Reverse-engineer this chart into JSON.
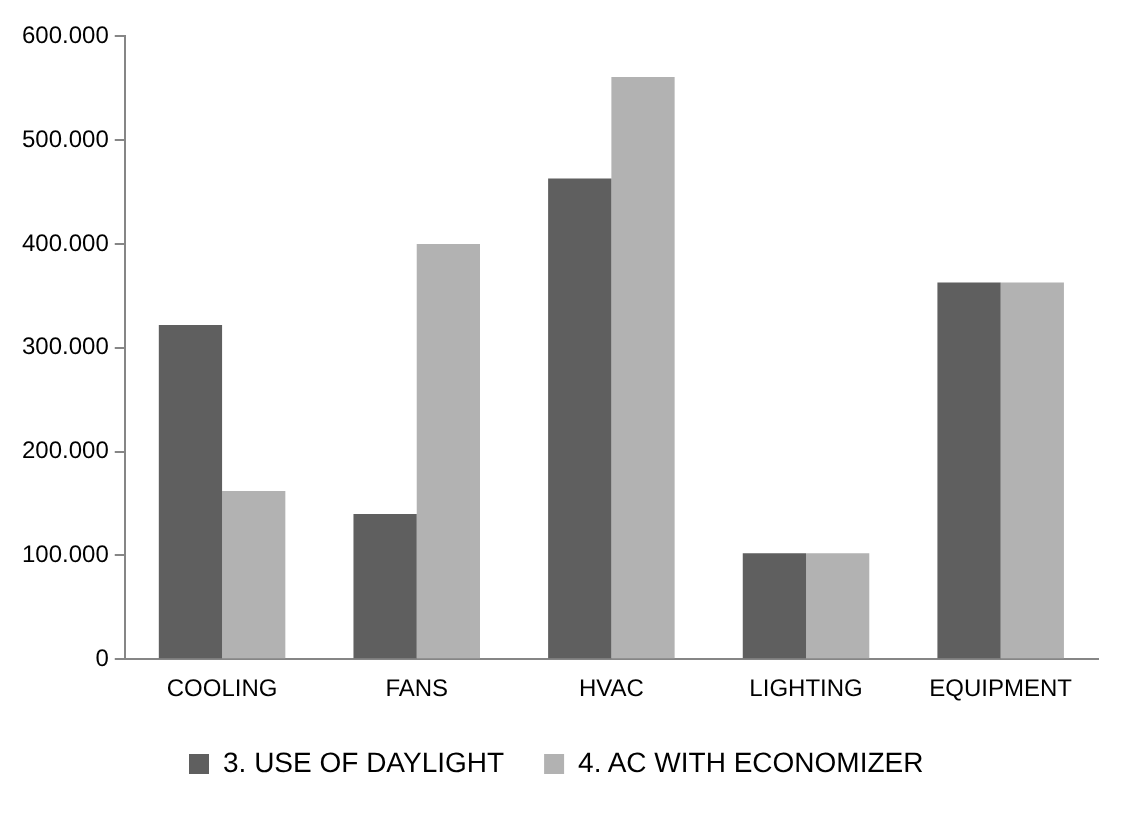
{
  "chart_data": {
    "type": "bar",
    "categories": [
      "COOLING",
      "FANS",
      "HVAC",
      "LIGHTING",
      "EQUIPMENT"
    ],
    "series": [
      {
        "name": "3. USE OF DAYLIGHT",
        "color": "#5f5f5f",
        "values": [
          322000,
          140000,
          463000,
          102000,
          363000
        ]
      },
      {
        "name": "4. AC WITH ECONOMIZER",
        "color": "#b2b2b2",
        "values": [
          162000,
          400000,
          561000,
          102000,
          363000
        ]
      }
    ],
    "ylim": [
      0,
      600000
    ],
    "yticks": [
      0,
      {
        "value": 100000,
        "label": "100.000"
      },
      {
        "value": 200000,
        "label": "200.000"
      },
      {
        "value": 300000,
        "label": "300.000"
      },
      {
        "value": 400000,
        "label": "400.000"
      },
      {
        "value": 500000,
        "label": "500.000"
      },
      {
        "value": 600000,
        "label": "600.000"
      }
    ],
    "grid": false,
    "legend": "bottom"
  }
}
